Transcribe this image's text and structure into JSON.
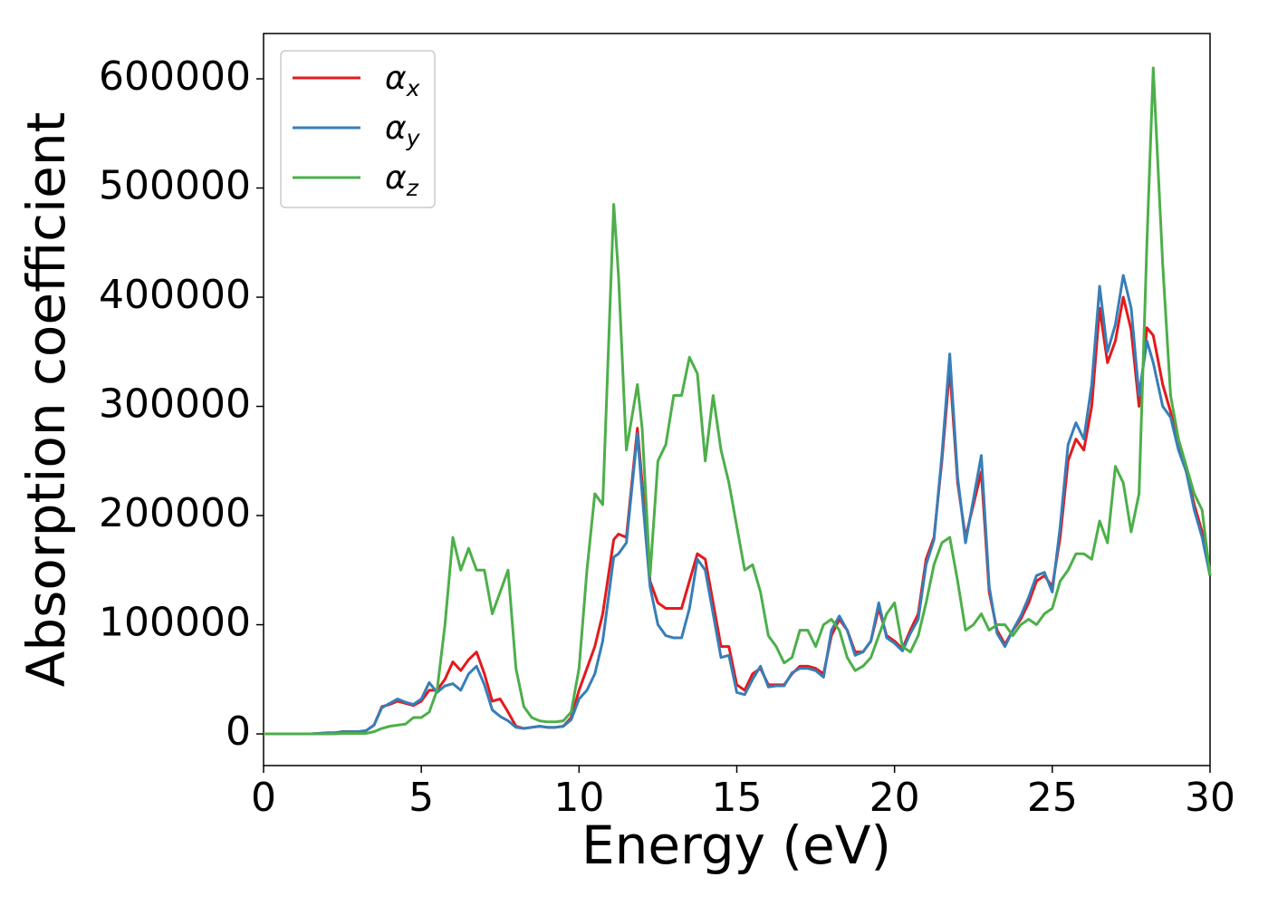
{
  "chart_data": {
    "type": "line",
    "xlabel": "Energy (eV)",
    "ylabel": "Absorption coefficient",
    "xlim": [
      0,
      30
    ],
    "ylim": [
      -29000,
      641500
    ],
    "xticks": [
      0,
      5,
      10,
      15,
      20,
      25,
      30
    ],
    "yticks": [
      0,
      100000,
      200000,
      300000,
      400000,
      500000,
      600000
    ],
    "legend": "upper left",
    "grid": false,
    "x": [
      0,
      0.25,
      0.5,
      0.75,
      1,
      1.25,
      1.5,
      1.75,
      2,
      2.25,
      2.5,
      2.75,
      3,
      3.25,
      3.5,
      3.75,
      4,
      4.25,
      4.5,
      4.75,
      5,
      5.25,
      5.5,
      5.75,
      6,
      6.25,
      6.5,
      6.75,
      7,
      7.25,
      7.5,
      7.75,
      8,
      8.25,
      8.5,
      8.75,
      9,
      9.25,
      9.5,
      9.75,
      10,
      10.25,
      10.5,
      10.75,
      11.1,
      11.25,
      11.5,
      11.85,
      12,
      12.25,
      12.5,
      12.75,
      13,
      13.25,
      13.5,
      13.75,
      14,
      14.25,
      14.5,
      14.75,
      15,
      15.25,
      15.5,
      15.75,
      16,
      16.25,
      16.5,
      16.75,
      17,
      17.25,
      17.5,
      17.75,
      18,
      18.25,
      18.5,
      18.75,
      19,
      19.25,
      19.5,
      19.75,
      20,
      20.25,
      20.5,
      20.75,
      21,
      21.25,
      21.5,
      21.75,
      22,
      22.25,
      22.5,
      22.75,
      23,
      23.25,
      23.5,
      23.75,
      24,
      24.25,
      24.5,
      24.75,
      25,
      25.25,
      25.5,
      25.75,
      26,
      26.25,
      26.5,
      26.75,
      27,
      27.25,
      27.5,
      27.75,
      28,
      28.2,
      28.5,
      28.75,
      29,
      29.25,
      29.5,
      29.75,
      30
    ],
    "series": [
      {
        "name": "αx",
        "color": "#e41a1c",
        "values": [
          0,
          0,
          0,
          0,
          0,
          0,
          0,
          500,
          1000,
          1000,
          2000,
          2000,
          2000,
          3000,
          8000,
          25000,
          27000,
          30000,
          28000,
          26000,
          30000,
          40000,
          40000,
          50000,
          66000,
          58000,
          68000,
          75000,
          55000,
          30000,
          32000,
          20000,
          7000,
          5000,
          6000,
          7000,
          6000,
          6000,
          7000,
          15000,
          40000,
          60000,
          80000,
          110000,
          178000,
          183000,
          180000,
          280000,
          230000,
          140000,
          120000,
          115000,
          115000,
          115000,
          140000,
          165000,
          160000,
          120000,
          80000,
          80000,
          45000,
          40000,
          55000,
          60000,
          45000,
          45000,
          45000,
          55000,
          62000,
          62000,
          60000,
          55000,
          90000,
          105000,
          95000,
          75000,
          75000,
          85000,
          115000,
          90000,
          85000,
          78000,
          95000,
          110000,
          160000,
          180000,
          250000,
          335000,
          230000,
          180000,
          210000,
          240000,
          130000,
          95000,
          82000,
          95000,
          105000,
          120000,
          140000,
          145000,
          135000,
          180000,
          250000,
          270000,
          260000,
          300000,
          390000,
          340000,
          360000,
          400000,
          370000,
          300000,
          372000,
          365000,
          320000,
          295000,
          265000,
          240000,
          210000,
          185000,
          145000
        ]
      },
      {
        "name": "αy",
        "color": "#377eb8",
        "values": [
          0,
          0,
          0,
          0,
          0,
          0,
          0,
          500,
          1000,
          1000,
          2000,
          2000,
          2000,
          3000,
          8000,
          24000,
          28000,
          32000,
          29000,
          27000,
          32000,
          47000,
          38000,
          44000,
          46000,
          40000,
          55000,
          62000,
          45000,
          22000,
          16000,
          12000,
          6000,
          5000,
          6000,
          7000,
          6000,
          6000,
          7000,
          13000,
          32000,
          40000,
          55000,
          85000,
          162000,
          165000,
          175000,
          275000,
          220000,
          135000,
          100000,
          90000,
          88000,
          88000,
          115000,
          160000,
          150000,
          110000,
          70000,
          72000,
          38000,
          36000,
          50000,
          62000,
          43000,
          44000,
          44000,
          56000,
          60000,
          60000,
          58000,
          52000,
          95000,
          108000,
          95000,
          72000,
          75000,
          85000,
          120000,
          88000,
          83000,
          76000,
          92000,
          105000,
          155000,
          178000,
          255000,
          348000,
          235000,
          175000,
          215000,
          255000,
          135000,
          92000,
          80000,
          95000,
          108000,
          125000,
          145000,
          148000,
          130000,
          190000,
          265000,
          285000,
          270000,
          320000,
          410000,
          350000,
          375000,
          420000,
          390000,
          310000,
          360000,
          340000,
          300000,
          290000,
          260000,
          240000,
          205000,
          180000,
          145000
        ]
      },
      {
        "name": "αz",
        "color": "#4daf4a",
        "values": [
          0,
          0,
          0,
          0,
          0,
          0,
          0,
          0,
          0,
          0,
          500,
          500,
          500,
          500,
          2000,
          5000,
          7000,
          8000,
          9000,
          15000,
          15000,
          20000,
          40000,
          100000,
          180000,
          150000,
          170000,
          150000,
          150000,
          110000,
          130000,
          150000,
          60000,
          25000,
          15000,
          12000,
          11000,
          11000,
          12000,
          20000,
          60000,
          150000,
          220000,
          210000,
          485000,
          420000,
          260000,
          320000,
          280000,
          145000,
          250000,
          265000,
          310000,
          310000,
          345000,
          330000,
          250000,
          310000,
          260000,
          230000,
          190000,
          150000,
          155000,
          130000,
          90000,
          80000,
          65000,
          70000,
          95000,
          95000,
          80000,
          100000,
          105000,
          95000,
          70000,
          58000,
          62000,
          70000,
          90000,
          110000,
          120000,
          80000,
          75000,
          90000,
          120000,
          155000,
          175000,
          180000,
          140000,
          95000,
          100000,
          110000,
          95000,
          100000,
          100000,
          90000,
          100000,
          105000,
          100000,
          110000,
          115000,
          140000,
          150000,
          165000,
          165000,
          160000,
          195000,
          175000,
          245000,
          230000,
          185000,
          220000,
          450000,
          610000,
          430000,
          310000,
          270000,
          245000,
          220000,
          205000,
          145000
        ]
      }
    ]
  }
}
